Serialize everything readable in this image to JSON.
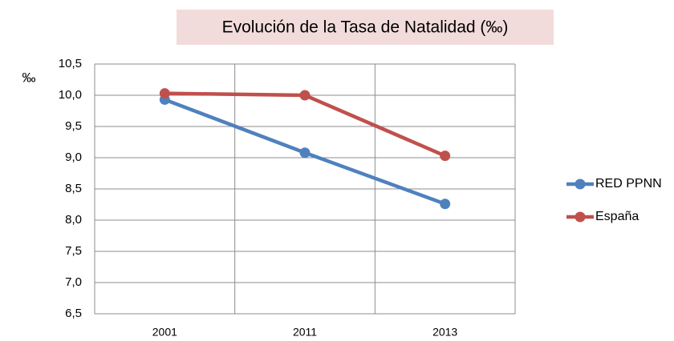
{
  "chart_data": {
    "type": "line",
    "title": "Evolución de la Tasa de Natalidad (‰)",
    "y_label": "‰",
    "categories": [
      "2001",
      "2011",
      "2013"
    ],
    "series": [
      {
        "name": "RED PPNN",
        "color": "#4f81bd",
        "values": [
          9.93,
          9.08,
          8.26
        ]
      },
      {
        "name": "España",
        "color": "#c0504d",
        "values": [
          10.03,
          10.0,
          9.03
        ]
      }
    ],
    "ylim": [
      6.5,
      10.5
    ],
    "yticks": [
      {
        "value": 6.5,
        "label": "6,5"
      },
      {
        "value": 7,
        "label": "7,0"
      },
      {
        "value": 7.5,
        "label": "7,5"
      },
      {
        "value": 8,
        "label": "8,0"
      },
      {
        "value": 8.5,
        "label": "8,5"
      },
      {
        "value": 9,
        "label": "9,0"
      },
      {
        "value": 9.5,
        "label": "9,5"
      },
      {
        "value": 10,
        "label": "10,0"
      },
      {
        "value": 10.5,
        "label": "10,5"
      }
    ],
    "grid": true,
    "legend": "right"
  }
}
